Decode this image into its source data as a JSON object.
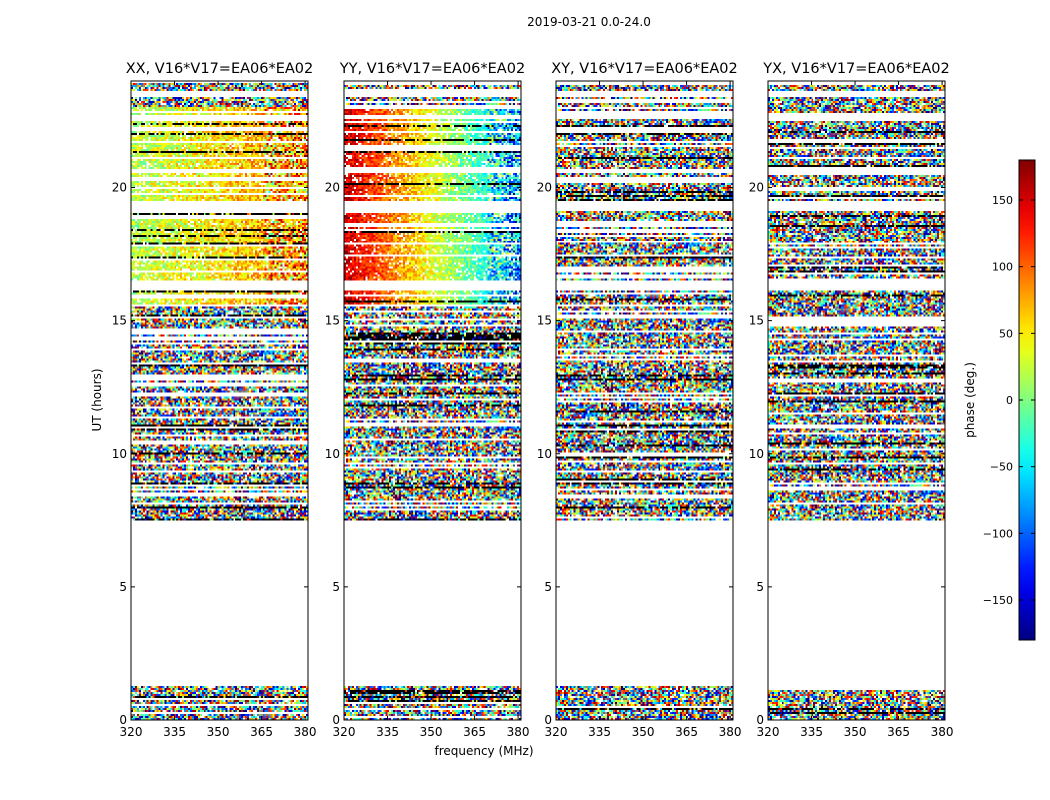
{
  "figure": {
    "suptitle": "2019-03-21 0.0-24.0",
    "xlabel": "frequency (MHz)",
    "ylabel": "UT (hours)",
    "colorbar_label": "phase (deg.)",
    "colorbar_ticks": [
      150,
      100,
      50,
      0,
      -50,
      -100,
      -150
    ],
    "colorbar_tick_labels": [
      "150",
      "100",
      "50",
      "0",
      "−50",
      "−100",
      "−150"
    ],
    "colorbar_range": [
      -180,
      180
    ],
    "colormap": "jet"
  },
  "chart_data": [
    {
      "type": "heatmap",
      "title": "XX, V16*V17=EA06*EA02",
      "xlim": [
        320,
        381
      ],
      "ylim": [
        0,
        24
      ],
      "xticks": [
        320,
        335,
        350,
        365,
        380
      ],
      "yticks": [
        0,
        5,
        10,
        15,
        20
      ],
      "x_tick_labels": [
        "320",
        "335",
        "350",
        "365",
        "380"
      ],
      "y_tick_labels": [
        "0",
        "5",
        "10",
        "15",
        "20"
      ],
      "phase_pattern": "coherent near 0° (green/yellow) between ~15.5 and ~23 h, noisy elsewhere"
    },
    {
      "type": "heatmap",
      "title": "YY, V16*V17=EA06*EA02",
      "xlim": [
        320,
        381
      ],
      "ylim": [
        0,
        24
      ],
      "xticks": [
        320,
        335,
        350,
        365,
        380
      ],
      "yticks": [
        0,
        5,
        10,
        15,
        20
      ],
      "x_tick_labels": [
        "320",
        "335",
        "350",
        "365",
        "380"
      ],
      "y_tick_labels": [
        "0",
        "5",
        "10",
        "15",
        "20"
      ],
      "phase_pattern": "phase wrapping red to blue across frequency between ~15.5 and ~23 h, noisy elsewhere"
    },
    {
      "type": "heatmap",
      "title": "XY, V16*V17=EA06*EA02",
      "xlim": [
        320,
        381
      ],
      "ylim": [
        0,
        24
      ],
      "xticks": [
        320,
        335,
        350,
        365,
        380
      ],
      "yticks": [
        0,
        5,
        10,
        15,
        20
      ],
      "x_tick_labels": [
        "320",
        "335",
        "350",
        "365",
        "380"
      ],
      "y_tick_labels": [
        "0",
        "5",
        "10",
        "15",
        "20"
      ],
      "phase_pattern": "random phase (noise) at all times"
    },
    {
      "type": "heatmap",
      "title": "YX, V16*V17=EA06*EA02",
      "xlim": [
        320,
        381
      ],
      "ylim": [
        0,
        24
      ],
      "xticks": [
        320,
        335,
        350,
        365,
        380
      ],
      "yticks": [
        0,
        5,
        10,
        15,
        20
      ],
      "x_tick_labels": [
        "320",
        "335",
        "350",
        "365",
        "380"
      ],
      "y_tick_labels": [
        "0",
        "5",
        "10",
        "15",
        "20"
      ],
      "phase_pattern": "random phase (noise) at all times"
    }
  ],
  "data_coverage": {
    "data_bands_ut_hours": [
      [
        0.0,
        1.3
      ],
      [
        7.5,
        23.9
      ]
    ],
    "flagged_gaps_ut_hours": [
      [
        1.3,
        7.5
      ],
      [
        16.1,
        16.5
      ],
      [
        19.1,
        19.5
      ],
      [
        20.55,
        20.7
      ],
      [
        22.6,
        22.7
      ],
      [
        23.4,
        23.6
      ]
    ]
  }
}
